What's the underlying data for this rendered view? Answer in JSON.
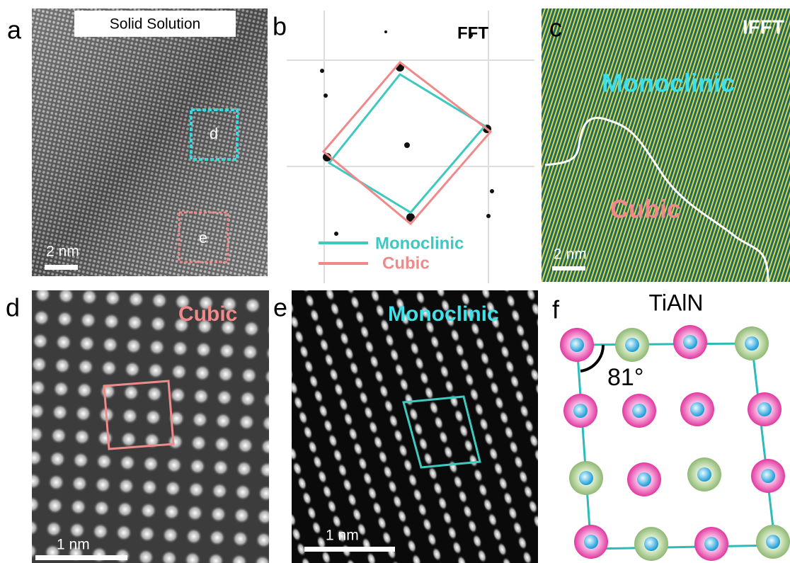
{
  "panels": [
    {
      "label": "a",
      "title": "Solid Solution",
      "box_labels": [
        "d",
        "e"
      ],
      "scale_bar": "2 nm"
    },
    {
      "label": "b",
      "title": "FFT",
      "legend": [
        "Monoclinic",
        "Cubic"
      ]
    },
    {
      "label": "c",
      "title": "IFFT",
      "regions": [
        "Monoclinic",
        "Cubic"
      ],
      "scale_bar": "2 nm"
    },
    {
      "label": "d",
      "title": "Cubic",
      "scale_bar": "1 nm"
    },
    {
      "label": "e",
      "title": "Monoclinic",
      "scale_bar": "1 nm"
    },
    {
      "label": "f",
      "title": "TiAlN",
      "angle": "81°"
    }
  ]
}
